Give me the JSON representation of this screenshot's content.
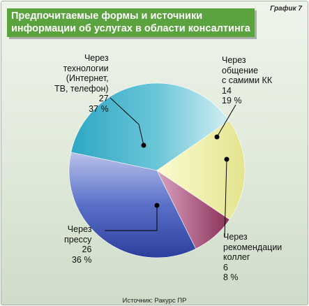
{
  "figure_label": "График 7",
  "title_lines": [
    "Предпочитаемые формы и источники",
    "информации об услугах в области консалтинга"
  ],
  "source": "Источник: Ракурс ПР",
  "colors": {
    "technology": "#3fb4cc",
    "personal": "#f0f0a8",
    "recommendations": "#9c4068",
    "press": "#3c56b8",
    "title_bg": "#5aa33f"
  },
  "labels": {
    "technology": [
      "Через",
      "технологии",
      "(Интернет,",
      "ТВ, телефон)",
      "27",
      "37 %"
    ],
    "personal": [
      "Через",
      "общение",
      "с самими КК",
      "14",
      "19 %"
    ],
    "recommendations": [
      "Через",
      "рекомендации",
      "коллег",
      "6",
      "8 %"
    ],
    "press": [
      "Через",
      "прессу",
      "26",
      "36 %"
    ]
  },
  "chart_data": {
    "type": "pie",
    "title": "Предпочитаемые формы и источники информации об услугах в области консалтинга",
    "categories": [
      "Через технологии (Интернет, ТВ, телефон)",
      "Через общение с самими КК",
      "Через рекомендации коллег",
      "Через прессу"
    ],
    "values": [
      27,
      14,
      6,
      26
    ],
    "percentages": [
      37,
      19,
      8,
      36
    ],
    "legend": "none"
  }
}
